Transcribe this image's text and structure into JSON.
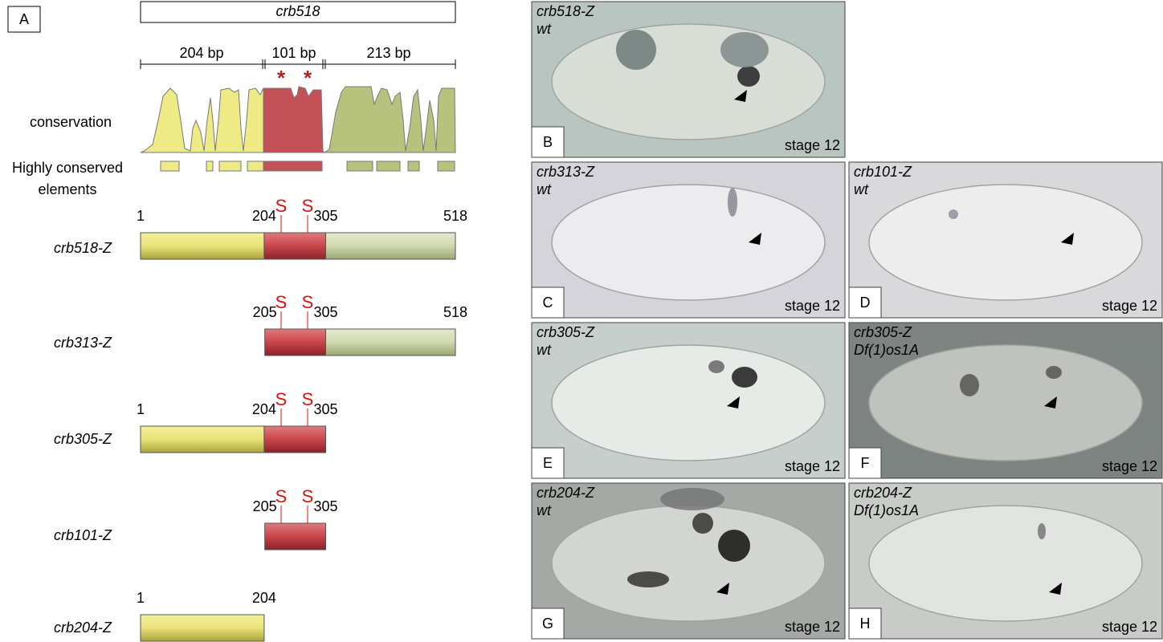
{
  "panel_a": {
    "label": "A",
    "gene": "crb518",
    "segments": [
      "204 bp",
      "101 bp",
      "213 bp"
    ],
    "asterisk": "*",
    "conservation_label": "conservation",
    "elements_label": "Highly conserved elements",
    "site_label": "S",
    "constructs": [
      {
        "name": "crb518-Z",
        "ticks": [
          1,
          204,
          305,
          518
        ]
      },
      {
        "name": "crb313-Z",
        "ticks": [
          205,
          305,
          518
        ]
      },
      {
        "name": "crb305-Z",
        "ticks": [
          1,
          204,
          305
        ]
      },
      {
        "name": "crb101-Z",
        "ticks": [
          205,
          305
        ]
      },
      {
        "name": "crb204-Z",
        "ticks": [
          1,
          204
        ]
      }
    ]
  },
  "micrographs": [
    {
      "label": "B",
      "construct": "crb518-Z",
      "genotype": "wt",
      "stage": "stage 12"
    },
    {
      "label": "C",
      "construct": "crb313-Z",
      "genotype": "wt",
      "stage": "stage 12"
    },
    {
      "label": "D",
      "construct": "crb101-Z",
      "genotype": "wt",
      "stage": "stage 12"
    },
    {
      "label": "E",
      "construct": "crb305-Z",
      "genotype": "wt",
      "stage": "stage 12"
    },
    {
      "label": "F",
      "construct": "crb305-Z",
      "genotype": "Df(1)os1A",
      "stage": "stage 12"
    },
    {
      "label": "G",
      "construct": "crb204-Z",
      "genotype": "wt",
      "stage": "stage 12"
    },
    {
      "label": "H",
      "construct": "crb204-Z",
      "genotype": "Df(1)os1A",
      "stage": "stage 12"
    }
  ]
}
